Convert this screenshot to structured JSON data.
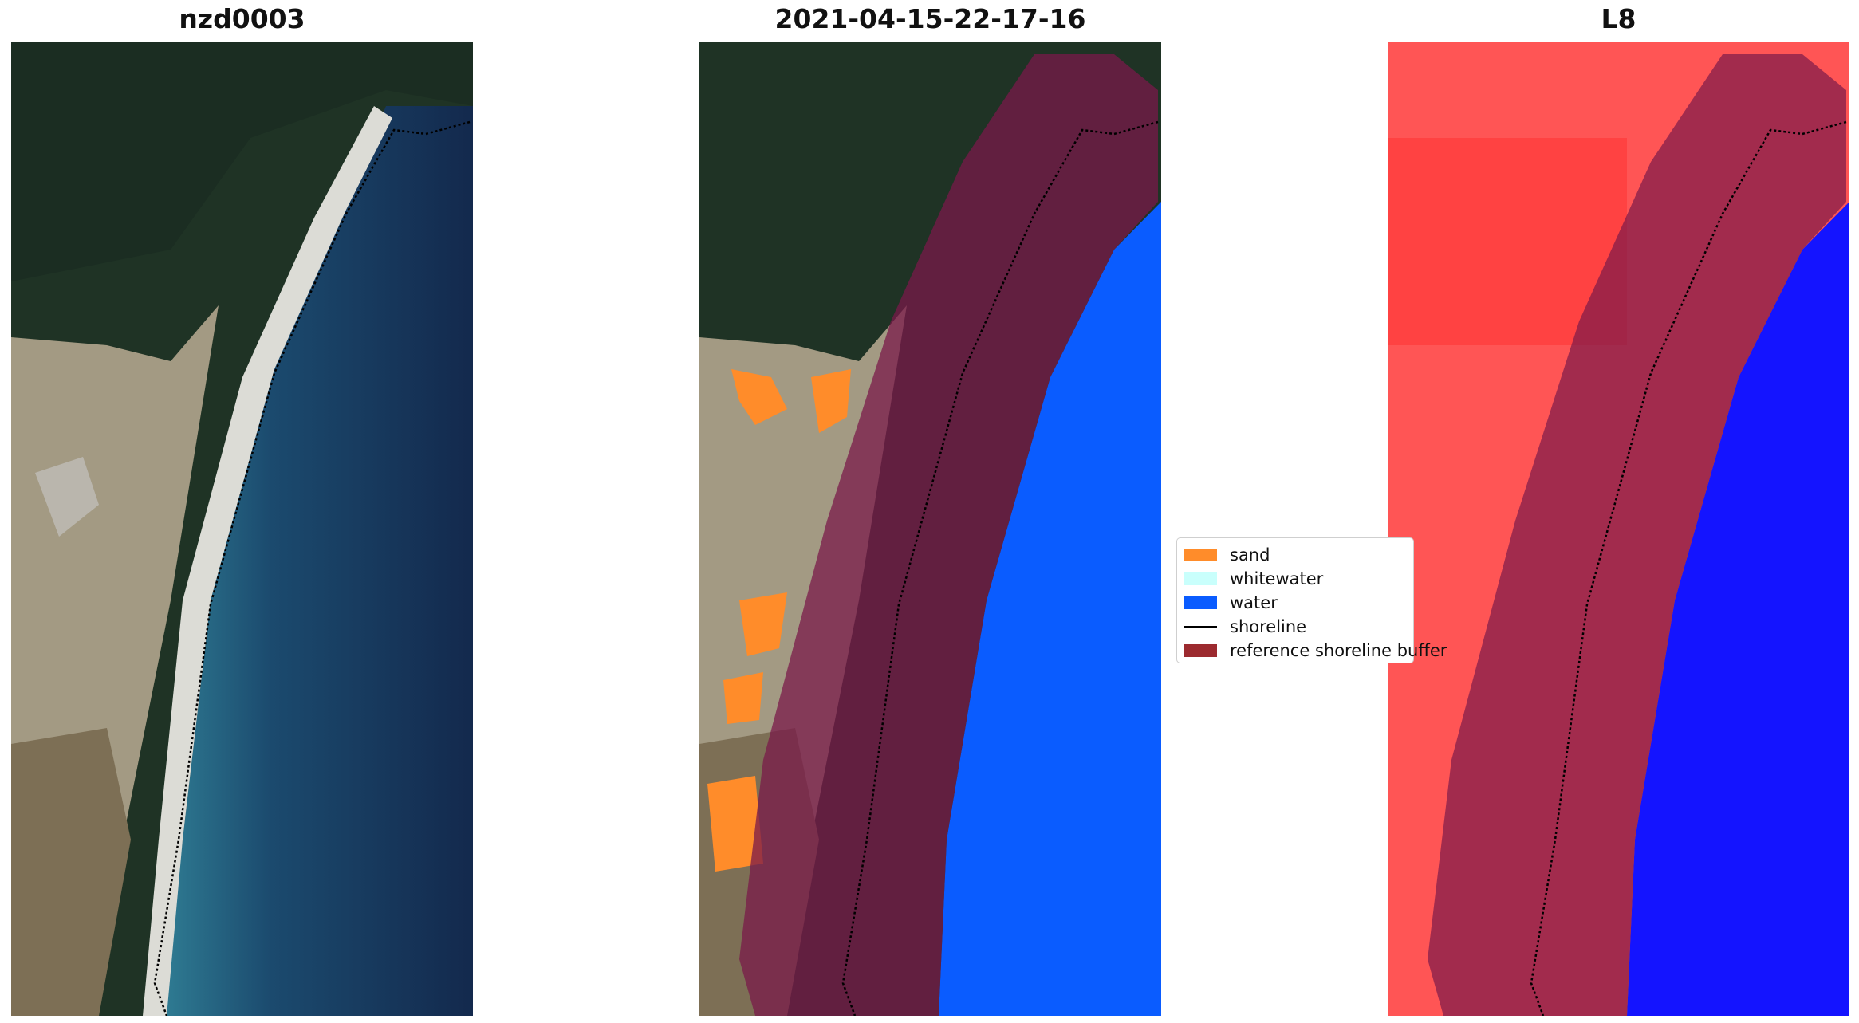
{
  "titles": {
    "left": "nzd0003",
    "middle": "2021-04-15-22-17-16",
    "right": "L8"
  },
  "legend": {
    "items": [
      {
        "label": "sand",
        "color": "#ff8c2a",
        "kind": "patch"
      },
      {
        "label": "whitewater",
        "color": "#c9fffc",
        "kind": "patch"
      },
      {
        "label": "water",
        "color": "#0a5cff",
        "kind": "patch"
      },
      {
        "label": "shoreline",
        "color": "#000000",
        "kind": "line"
      },
      {
        "label": "reference shoreline buffer",
        "color": "#9c2a2f",
        "kind": "patch"
      }
    ]
  },
  "colors": {
    "forest": "#1f3325",
    "sand_land": "#a39a83",
    "beach": "#dcdcd6",
    "nearshore": "#2f7c93",
    "ocean": "#13294d",
    "water_class": "#0a5cff",
    "buffer": "#7a1a4a",
    "mndwi_land": "#ff3b3b",
    "mndwi_water": "#1414ff"
  }
}
